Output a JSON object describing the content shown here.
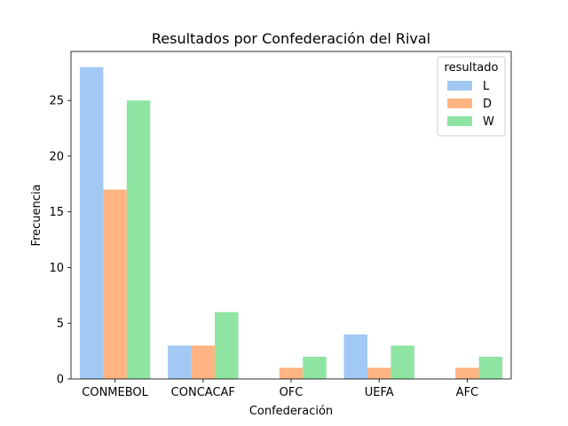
{
  "chart_data": {
    "type": "bar",
    "title": "Resultados por Confederación del Rival",
    "xlabel": "Confederación",
    "ylabel": "Frecuencia",
    "categories": [
      "CONMEBOL",
      "CONCACAF",
      "OFC",
      "UEFA",
      "AFC"
    ],
    "ylim": [
      0,
      29.4
    ],
    "yticks": [
      0,
      5,
      10,
      15,
      20,
      25
    ],
    "grid": false,
    "legend": {
      "title": "resultado",
      "placement": "top-right"
    },
    "series": [
      {
        "name": "L",
        "color": "#a1c9f4",
        "values": [
          28,
          3,
          0,
          4,
          0
        ]
      },
      {
        "name": "D",
        "color": "#ffb482",
        "values": [
          17,
          3,
          1,
          1,
          1
        ]
      },
      {
        "name": "W",
        "color": "#8de5a1",
        "values": [
          25,
          6,
          2,
          3,
          2
        ]
      }
    ]
  }
}
